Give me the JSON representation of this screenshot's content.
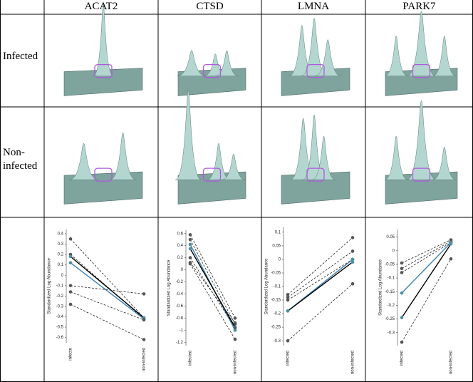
{
  "columns": [
    "ACAT2",
    "CTSD",
    "LMNA",
    "PARK7"
  ],
  "row_labels": [
    "Infected",
    "Non-infected"
  ],
  "chart_data": [
    {
      "type": "line",
      "y_label": "Standardized Log Abundance",
      "categories": [
        "infecte",
        "non-infected"
      ],
      "ylim": [
        -0.63,
        0.42
      ],
      "yticks": [
        0.4,
        0.3,
        0.2,
        0.1,
        0,
        -0.1,
        -0.2,
        -0.3,
        -0.4,
        -0.5,
        -0.6
      ],
      "series": [
        {
          "color": "#222222",
          "dashed": true,
          "values": [
            0.35,
            -0.41
          ]
        },
        {
          "color": "#222222",
          "dashed": true,
          "values": [
            0.2,
            -0.42
          ]
        },
        {
          "color": "#000000",
          "dashed": false,
          "values": [
            0.18,
            -0.41
          ]
        },
        {
          "color": "#3c7fb0",
          "dashed": false,
          "values": [
            0.12,
            -0.42
          ]
        },
        {
          "color": "#222222",
          "dashed": true,
          "values": [
            -0.1,
            -0.18
          ]
        },
        {
          "color": "#222222",
          "dashed": true,
          "values": [
            -0.16,
            -0.43
          ]
        },
        {
          "color": "#222222",
          "dashed": true,
          "values": [
            -0.28,
            -0.62
          ]
        }
      ]
    },
    {
      "type": "line",
      "y_label": "Standardized Log Abundance",
      "categories": [
        "infected",
        "non-infected"
      ],
      "ylim": [
        -1.22,
        0.62
      ],
      "yticks": [
        0.6,
        0.4,
        0.2,
        0,
        -0.2,
        -0.4,
        -0.6,
        -0.8,
        -1,
        -1.2
      ],
      "series": [
        {
          "color": "#222222",
          "dashed": true,
          "values": [
            0.58,
            -0.8
          ]
        },
        {
          "color": "#222222",
          "dashed": true,
          "values": [
            0.5,
            -0.9
          ]
        },
        {
          "color": "#3c7fb0",
          "dashed": false,
          "values": [
            0.42,
            -1.0
          ]
        },
        {
          "color": "#000000",
          "dashed": false,
          "values": [
            0.35,
            -0.95
          ]
        },
        {
          "color": "#222222",
          "dashed": true,
          "values": [
            0.2,
            -0.96
          ]
        },
        {
          "color": "#222222",
          "dashed": true,
          "values": [
            0.12,
            -0.88
          ]
        },
        {
          "color": "#222222",
          "dashed": true,
          "values": [
            0.1,
            -1.15
          ]
        }
      ]
    },
    {
      "type": "line",
      "y_label": "Standardized Log Abundance",
      "categories": [
        "infected",
        "non-infected"
      ],
      "ylim": [
        -0.31,
        0.11
      ],
      "yticks": [
        0.1,
        0.05,
        0,
        -0.05,
        -0.1,
        -0.15,
        -0.2,
        -0.25,
        -0.3
      ],
      "series": [
        {
          "color": "#222222",
          "dashed": true,
          "values": [
            -0.13,
            0.08
          ]
        },
        {
          "color": "#222222",
          "dashed": true,
          "values": [
            -0.14,
            0.03
          ]
        },
        {
          "color": "#222222",
          "dashed": true,
          "values": [
            -0.15,
            0.0
          ]
        },
        {
          "color": "#3c7fb0",
          "dashed": false,
          "values": [
            -0.19,
            0.0
          ]
        },
        {
          "color": "#000000",
          "dashed": false,
          "values": [
            -0.19,
            -0.01
          ]
        },
        {
          "color": "#222222",
          "dashed": true,
          "values": [
            -0.3,
            -0.09
          ]
        }
      ]
    },
    {
      "type": "line",
      "y_label": "Standardized Log Abundance",
      "categories": [
        "infected",
        "non-infected"
      ],
      "ylim": [
        -0.34,
        0.07
      ],
      "yticks": [
        0.05,
        0,
        -0.05,
        -0.1,
        -0.15,
        -0.2,
        -0.25,
        -0.3
      ],
      "series": [
        {
          "color": "#222222",
          "dashed": true,
          "values": [
            -0.045,
            0.04
          ]
        },
        {
          "color": "#222222",
          "dashed": true,
          "values": [
            -0.065,
            0.035
          ]
        },
        {
          "color": "#222222",
          "dashed": true,
          "values": [
            -0.08,
            0.03
          ]
        },
        {
          "color": "#3c7fb0",
          "dashed": false,
          "values": [
            -0.155,
            0.03
          ]
        },
        {
          "color": "#000000",
          "dashed": false,
          "values": [
            -0.245,
            0.025
          ]
        },
        {
          "color": "#222222",
          "dashed": true,
          "values": [
            -0.335,
            -0.03
          ]
        }
      ]
    }
  ]
}
